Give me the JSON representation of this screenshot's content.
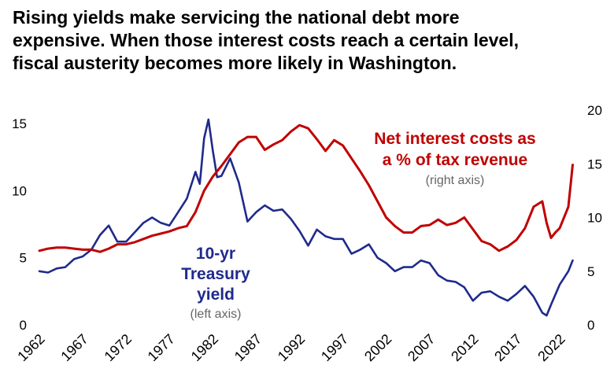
{
  "title_lines": [
    "Rising yields make servicing the national debt more",
    "expensive. When those interest costs reach a certain level,",
    "fiscal austerity becomes more likely in Washington."
  ],
  "chart_data": {
    "type": "line",
    "title": "Rising yields make servicing the national debt more expensive. When those interest costs reach a certain level, fiscal austerity becomes more likely in Washington.",
    "xlabel": "",
    "x_ticks": [
      "1962",
      "1967",
      "1972",
      "1977",
      "1982",
      "1987",
      "1992",
      "1997",
      "2002",
      "2007",
      "2012",
      "2017",
      "2022"
    ],
    "xlim": [
      1962,
      2024
    ],
    "left_axis": {
      "ticks": [
        "0",
        "5",
        "10",
        "15"
      ],
      "ylim": [
        0,
        16
      ]
    },
    "right_axis": {
      "ticks": [
        "0",
        "5",
        "10",
        "15",
        "20"
      ],
      "ylim": [
        0,
        20
      ]
    },
    "annotations": {
      "yield_label": [
        "10-yr",
        "Treasury",
        "yield"
      ],
      "yield_note": "(left axis)",
      "interest_label": [
        "Net interest costs as",
        "a % of tax revenue"
      ],
      "interest_note": "(right axis)"
    },
    "series": [
      {
        "name": "10-yr Treasury yield",
        "axis": "left",
        "color": "#1f2a8c",
        "x": [
          1962,
          1963,
          1964,
          1965,
          1966,
          1967,
          1968,
          1969,
          1970,
          1971,
          1972,
          1973,
          1974,
          1975,
          1976,
          1977,
          1978,
          1979,
          1980,
          1980.5,
          1981,
          1981.5,
          1982,
          1982.5,
          1983,
          1984,
          1985,
          1986,
          1987,
          1988,
          1989,
          1990,
          1991,
          1992,
          1993,
          1994,
          1995,
          1996,
          1997,
          1998,
          1999,
          2000,
          2001,
          2002,
          2003,
          2004,
          2005,
          2006,
          2007,
          2008,
          2009,
          2010,
          2011,
          2012,
          2013,
          2014,
          2015,
          2016,
          2017,
          2018,
          2019,
          2020,
          2020.5,
          2021,
          2022,
          2023,
          2023.5
        ],
        "values": [
          4.0,
          3.9,
          4.2,
          4.3,
          4.9,
          5.1,
          5.6,
          6.7,
          7.4,
          6.2,
          6.2,
          6.9,
          7.6,
          8.0,
          7.6,
          7.4,
          8.4,
          9.4,
          11.4,
          10.5,
          13.9,
          15.3,
          13.0,
          11.0,
          11.1,
          12.4,
          10.6,
          7.7,
          8.4,
          8.9,
          8.5,
          8.6,
          7.9,
          7.0,
          5.9,
          7.1,
          6.6,
          6.4,
          6.4,
          5.3,
          5.6,
          6.0,
          5.0,
          4.6,
          4.0,
          4.3,
          4.3,
          4.8,
          4.6,
          3.7,
          3.3,
          3.2,
          2.8,
          1.8,
          2.4,
          2.5,
          2.1,
          1.8,
          2.3,
          2.9,
          2.1,
          0.9,
          0.7,
          1.5,
          3.0,
          4.0,
          4.8
        ]
      },
      {
        "name": "Net interest costs as a % of tax revenue",
        "axis": "right",
        "color": "#c00000",
        "x": [
          1962,
          1963,
          1964,
          1965,
          1966,
          1967,
          1968,
          1969,
          1970,
          1971,
          1972,
          1973,
          1974,
          1975,
          1976,
          1977,
          1978,
          1979,
          1980,
          1981,
          1982,
          1983,
          1984,
          1985,
          1986,
          1987,
          1988,
          1989,
          1990,
          1991,
          1992,
          1993,
          1994,
          1995,
          1996,
          1997,
          1998,
          1999,
          2000,
          2001,
          2002,
          2003,
          2004,
          2005,
          2006,
          2007,
          2008,
          2009,
          2010,
          2011,
          2012,
          2013,
          2014,
          2015,
          2016,
          2017,
          2018,
          2019,
          2020,
          2020.5,
          2021,
          2021.5,
          2022,
          2023,
          2023.5
        ],
        "values": [
          6.9,
          7.1,
          7.2,
          7.2,
          7.1,
          7.0,
          7.0,
          6.8,
          7.1,
          7.5,
          7.5,
          7.7,
          8.0,
          8.3,
          8.5,
          8.7,
          9.0,
          9.2,
          10.5,
          12.5,
          13.8,
          14.8,
          15.9,
          17.0,
          17.5,
          17.5,
          16.3,
          16.8,
          17.2,
          18.0,
          18.6,
          18.3,
          17.3,
          16.2,
          17.2,
          16.7,
          15.5,
          14.3,
          13.0,
          11.5,
          10.0,
          9.2,
          8.6,
          8.6,
          9.2,
          9.3,
          9.8,
          9.3,
          9.5,
          10.0,
          8.9,
          7.8,
          7.5,
          6.9,
          7.3,
          7.9,
          9.0,
          11.0,
          11.5,
          9.5,
          8.1,
          8.6,
          9.0,
          11.0,
          14.9
        ]
      }
    ]
  }
}
